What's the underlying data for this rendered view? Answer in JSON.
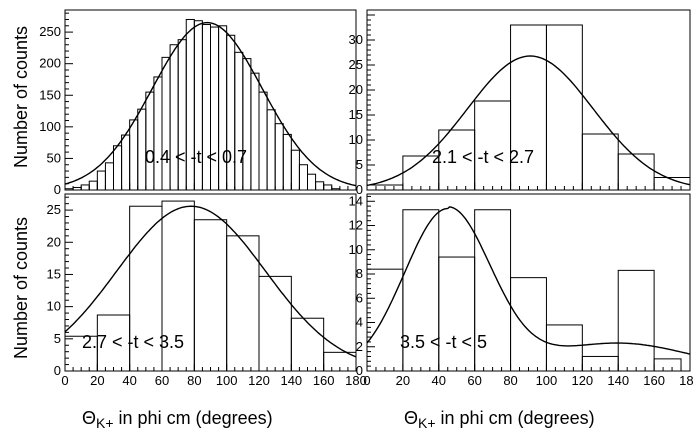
{
  "figure": {
    "ylabel": "Number of counts",
    "xlabel_symbol": "Θ",
    "xlabel_sub": "K+",
    "xlabel_text": " in phi cm (degrees)"
  },
  "colors": {
    "line": "#000000",
    "background": "#ffffff"
  },
  "chart_data": [
    {
      "type": "histogram",
      "annotation": "0.4 < -t < 0.7",
      "xlim": [
        0,
        180
      ],
      "ylim": [
        0,
        285
      ],
      "yticks": [
        0,
        50,
        100,
        150,
        200,
        250
      ],
      "ytick_labels": [
        "0",
        "50",
        "100",
        "150",
        "200",
        "250"
      ],
      "xticks": [
        0,
        20,
        40,
        60,
        80,
        100,
        120,
        140,
        160,
        180
      ],
      "xtick_labels": [],
      "bin_edges": [
        0,
        5,
        10,
        15,
        20,
        25,
        30,
        35,
        40,
        45,
        50,
        55,
        60,
        65,
        70,
        75,
        80,
        85,
        90,
        95,
        100,
        105,
        110,
        115,
        120,
        125,
        130,
        135,
        140,
        145,
        150,
        155,
        160,
        165,
        170,
        175,
        180
      ],
      "counts": [
        2,
        4,
        8,
        14,
        30,
        43,
        70,
        87,
        111,
        128,
        155,
        179,
        210,
        230,
        238,
        270,
        268,
        262,
        258,
        260,
        245,
        218,
        208,
        185,
        155,
        127,
        105,
        88,
        63,
        40,
        25,
        13,
        8,
        2,
        0,
        0
      ],
      "fit": {
        "amplitude": 265,
        "mean": 88,
        "sigma": 34
      }
    },
    {
      "type": "histogram",
      "annotation": "2.1 < -t < 2.7",
      "xlim": [
        0,
        180
      ],
      "ylim": [
        0,
        36
      ],
      "yticks": [
        0,
        5,
        10,
        15,
        20,
        25,
        30
      ],
      "ytick_labels": [
        "0",
        "5",
        "10",
        "15",
        "20",
        "25",
        "30"
      ],
      "xticks": [
        0,
        20,
        40,
        60,
        80,
        100,
        120,
        140,
        160,
        180
      ],
      "xtick_labels": [],
      "bin_edges": [
        0,
        20,
        40,
        60,
        80,
        100,
        120,
        140,
        160,
        180
      ],
      "counts": [
        1,
        6.8,
        12,
        17.8,
        33,
        33,
        11.2,
        7.2,
        2.5
      ],
      "fit": {
        "amplitude": 26.8,
        "mean": 91,
        "sigma": 35
      }
    },
    {
      "type": "histogram",
      "annotation": "2.7 < -t < 3.5",
      "xlim": [
        0,
        180
      ],
      "ylim": [
        0,
        27.5
      ],
      "yticks": [
        0,
        5,
        10,
        15,
        20,
        25
      ],
      "ytick_labels": [
        "0",
        "5",
        "10",
        "15",
        "20",
        "25"
      ],
      "xticks": [
        0,
        20,
        40,
        60,
        80,
        100,
        120,
        140,
        160,
        180
      ],
      "xtick_labels": [
        "0",
        "20",
        "40",
        "60",
        "80",
        "100",
        "120",
        "140",
        "160",
        "180"
      ],
      "bin_edges": [
        0,
        20,
        40,
        60,
        80,
        100,
        120,
        140,
        160,
        180
      ],
      "counts": [
        5.4,
        8.7,
        25.6,
        26.4,
        23.5,
        21.0,
        14.7,
        8.2,
        2.9
      ],
      "fit": {
        "amplitude": 25.6,
        "mean": 78,
        "sigma": 46
      }
    },
    {
      "type": "histogram",
      "annotation": "3.5 < -t < 5",
      "xlim": [
        0,
        180
      ],
      "ylim": [
        0,
        14.6
      ],
      "yticks": [
        0,
        2,
        4,
        6,
        8,
        10,
        12,
        14
      ],
      "ytick_labels": [
        "0",
        "2",
        "4",
        "6",
        "8",
        "10",
        "12",
        "14"
      ],
      "xticks": [
        0,
        20,
        40,
        60,
        80,
        100,
        120,
        140,
        160,
        180
      ],
      "xtick_labels": [
        "0",
        "20",
        "40",
        "60",
        "80",
        "100",
        "120",
        "140",
        "160",
        "180"
      ],
      "bin_edges": [
        0,
        20,
        40,
        60,
        80,
        100,
        120,
        140,
        160,
        175
      ],
      "counts": [
        8.4,
        13.3,
        9.4,
        13.3,
        7.7,
        3.8,
        1.2,
        8.3,
        1.0
      ],
      "fit": {
        "amplitude": 13.4,
        "mean": 45,
        "sigma": 24,
        "tail": 2.3
      }
    }
  ]
}
